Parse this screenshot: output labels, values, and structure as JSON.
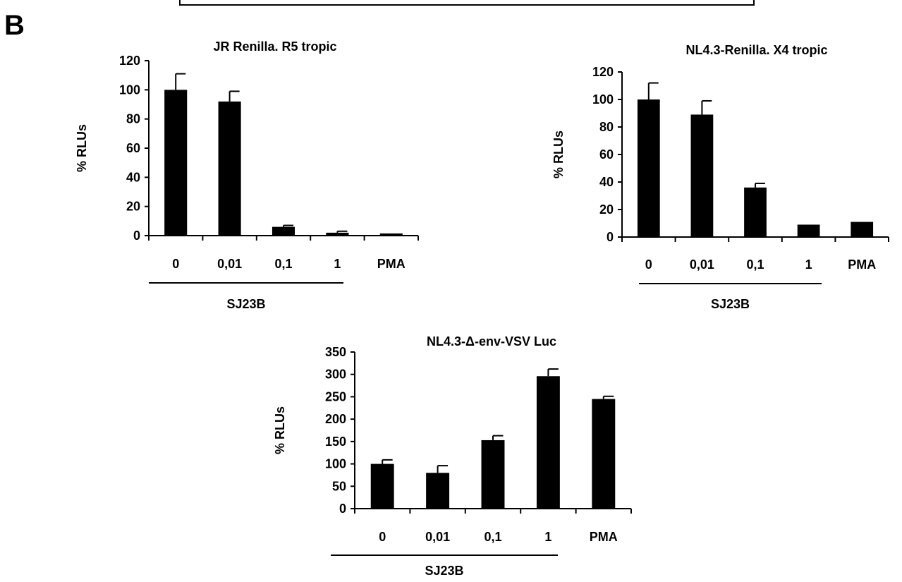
{
  "panel_label": "B",
  "chart_data": [
    {
      "type": "bar",
      "title": "JR Renilla. R5 tropic",
      "ylabel": "% RLUs",
      "xgroup_label": "SJ23B",
      "categories": [
        "0",
        "0,01",
        "0,1",
        "1",
        "PMA"
      ],
      "values": [
        100,
        92,
        6,
        2,
        1.5
      ],
      "errors": [
        11,
        7,
        1,
        1,
        0
      ],
      "ylim": [
        0,
        120
      ],
      "yticks": [
        "0",
        "20",
        "40",
        "60",
        "80",
        "100",
        "120"
      ],
      "color": "#000000",
      "grid": false
    },
    {
      "type": "bar",
      "title": "NL4.3-Renilla. X4 tropic",
      "ylabel": "% RLUs",
      "xgroup_label": "SJ23B",
      "categories": [
        "0",
        "0,01",
        "0,1",
        "1",
        "PMA"
      ],
      "values": [
        100,
        89,
        36,
        9,
        11
      ],
      "errors": [
        12,
        10,
        3,
        0,
        0
      ],
      "ylim": [
        0,
        120
      ],
      "yticks": [
        "0",
        "20",
        "40",
        "60",
        "80",
        "100",
        "120"
      ],
      "color": "#000000",
      "grid": false
    },
    {
      "type": "bar",
      "title": "NL4.3-Δ-env-VSV Luc",
      "ylabel": "% RLUs",
      "xgroup_label": "SJ23B",
      "categories": [
        "0",
        "0,01",
        "0,1",
        "1",
        "PMA"
      ],
      "values": [
        100,
        80,
        153,
        296,
        245
      ],
      "errors": [
        9,
        16,
        10,
        16,
        6
      ],
      "ylim": [
        0,
        350
      ],
      "yticks": [
        "0",
        "50",
        "100",
        "150",
        "200",
        "250",
        "300",
        "350"
      ],
      "color": "#000000",
      "grid": false
    }
  ]
}
